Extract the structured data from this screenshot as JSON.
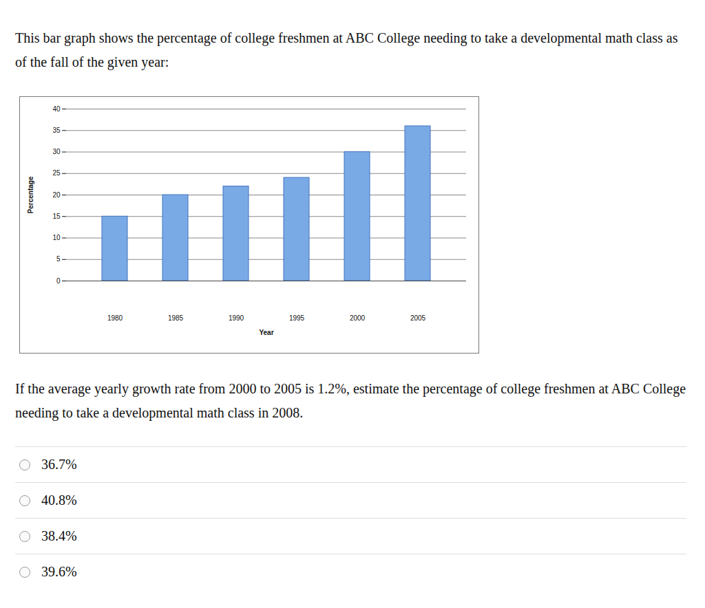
{
  "intro": "This bar graph shows the percentage of college freshmen at ABC College needing to take a developmental math class as of the fall of the given year:",
  "chart_data": {
    "type": "bar",
    "categories": [
      "1980",
      "1985",
      "1990",
      "1995",
      "2000",
      "2005"
    ],
    "values": [
      15,
      20,
      22,
      24,
      30,
      36
    ],
    "color": "#7aaae6",
    "x_label": "Year",
    "y_label": "Percentage",
    "ylim": [
      0,
      40
    ],
    "yticks": [
      0,
      5,
      10,
      15,
      20,
      25,
      30,
      35,
      40
    ],
    "grid": true
  },
  "question": "If the average yearly growth rate from 2000 to 2005 is 1.2%, estimate the percentage of college freshmen at ABC College needing to take a developmental math class in 2008.",
  "choices": [
    "36.7%",
    "40.8%",
    "38.4%",
    "39.6%"
  ]
}
